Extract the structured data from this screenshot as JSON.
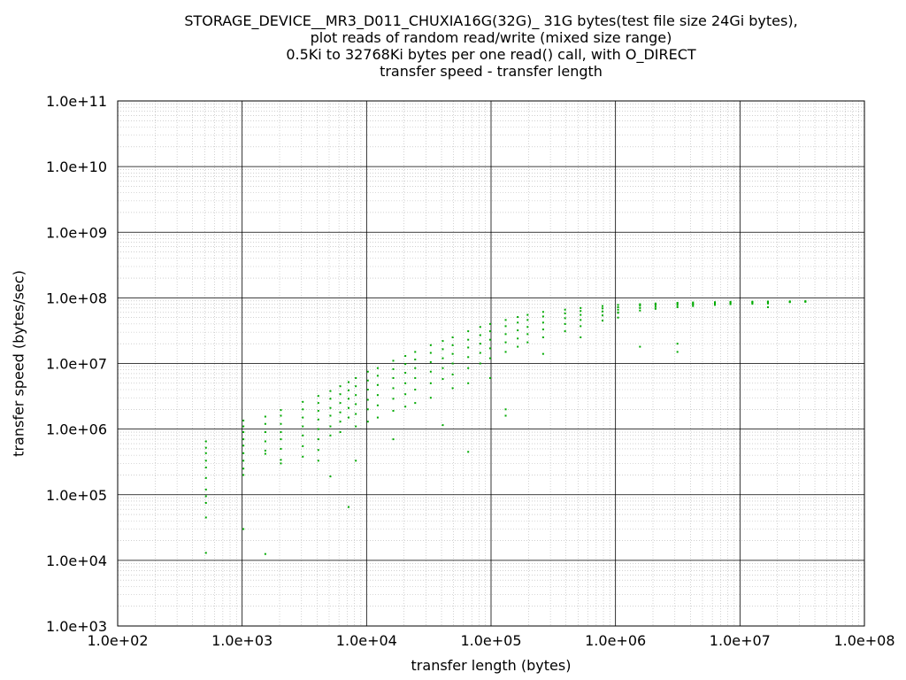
{
  "chart_data": {
    "type": "scatter",
    "title_lines": [
      "STORAGE_DEVICE__MR3_D011_CHUXIA16G(32G)_ 31G bytes(test file size 24Gi bytes),",
      "plot reads of random read/write (mixed size range)",
      "0.5Ki to 32768Ki bytes per one read() call, with O_DIRECT",
      "transfer speed - transfer length"
    ],
    "xlabel": "transfer length (bytes)",
    "ylabel": "transfer speed (bytes/sec)",
    "xscale": "log",
    "yscale": "log",
    "xlim": [
      100,
      100000000
    ],
    "ylim": [
      1000,
      100000000000
    ],
    "xticks": [
      "1.0e+02",
      "1.0e+03",
      "1.0e+04",
      "1.0e+05",
      "1.0e+06",
      "1.0e+07",
      "1.0e+08"
    ],
    "yticks": [
      "1.0e+03",
      "1.0e+04",
      "1.0e+05",
      "1.0e+06",
      "1.0e+07",
      "1.0e+08",
      "1.0e+09",
      "1.0e+10",
      "1.0e+11"
    ],
    "grid": true,
    "marker_color": "#00aa00",
    "series": [
      {
        "points": [
          [
            512,
            650000
          ],
          [
            512,
            520000
          ],
          [
            512,
            430000
          ],
          [
            512,
            330000
          ],
          [
            512,
            260000
          ],
          [
            512,
            180000
          ],
          [
            512,
            120000
          ],
          [
            512,
            95000
          ],
          [
            512,
            75000
          ],
          [
            512,
            45000
          ],
          [
            512,
            13000
          ],
          [
            1024,
            1350000
          ],
          [
            1024,
            1100000
          ],
          [
            1024,
            900000
          ],
          [
            1024,
            700000
          ],
          [
            1024,
            560000
          ],
          [
            1024,
            430000
          ],
          [
            1024,
            330000
          ],
          [
            1024,
            250000
          ],
          [
            1024,
            200000
          ],
          [
            1024,
            30000
          ],
          [
            1536,
            1550000
          ],
          [
            1536,
            1200000
          ],
          [
            1536,
            900000
          ],
          [
            1536,
            650000
          ],
          [
            1536,
            470000
          ],
          [
            1536,
            420000
          ],
          [
            1536,
            12500
          ],
          [
            2048,
            1950000
          ],
          [
            2048,
            1600000
          ],
          [
            2048,
            1200000
          ],
          [
            2048,
            900000
          ],
          [
            2048,
            700000
          ],
          [
            2048,
            500000
          ],
          [
            2048,
            340000
          ],
          [
            2048,
            300000
          ],
          [
            3072,
            2600000
          ],
          [
            3072,
            2000000
          ],
          [
            3072,
            1500000
          ],
          [
            3072,
            1100000
          ],
          [
            3072,
            800000
          ],
          [
            3072,
            550000
          ],
          [
            3072,
            380000
          ],
          [
            4096,
            3200000
          ],
          [
            4096,
            2500000
          ],
          [
            4096,
            1900000
          ],
          [
            4096,
            1400000
          ],
          [
            4096,
            1000000
          ],
          [
            4096,
            700000
          ],
          [
            4096,
            480000
          ],
          [
            4096,
            330000
          ],
          [
            5120,
            3800000
          ],
          [
            5120,
            2900000
          ],
          [
            5120,
            2100000
          ],
          [
            5120,
            1600000
          ],
          [
            5120,
            1100000
          ],
          [
            5120,
            800000
          ],
          [
            5120,
            190000
          ],
          [
            6144,
            4500000
          ],
          [
            6144,
            3400000
          ],
          [
            6144,
            2500000
          ],
          [
            6144,
            1800000
          ],
          [
            6144,
            1300000
          ],
          [
            6144,
            900000
          ],
          [
            7168,
            5200000
          ],
          [
            7168,
            3900000
          ],
          [
            7168,
            2900000
          ],
          [
            7168,
            2100000
          ],
          [
            7168,
            1500000
          ],
          [
            7168,
            65000
          ],
          [
            8192,
            6000000
          ],
          [
            8192,
            4500000
          ],
          [
            8192,
            3300000
          ],
          [
            8192,
            2400000
          ],
          [
            8192,
            1700000
          ],
          [
            8192,
            1100000
          ],
          [
            8192,
            330000
          ],
          [
            10240,
            7500000
          ],
          [
            10240,
            5500000
          ],
          [
            10240,
            4000000
          ],
          [
            10240,
            2800000
          ],
          [
            10240,
            2000000
          ],
          [
            10240,
            1300000
          ],
          [
            12288,
            8500000
          ],
          [
            12288,
            6500000
          ],
          [
            12288,
            4700000
          ],
          [
            12288,
            3300000
          ],
          [
            12288,
            2300000
          ],
          [
            12288,
            1500000
          ],
          [
            16384,
            11000000
          ],
          [
            16384,
            8200000
          ],
          [
            16384,
            6000000
          ],
          [
            16384,
            4200000
          ],
          [
            16384,
            2900000
          ],
          [
            16384,
            1900000
          ],
          [
            16384,
            700000
          ],
          [
            20480,
            13000000
          ],
          [
            20480,
            9800000
          ],
          [
            20480,
            7200000
          ],
          [
            20480,
            5000000
          ],
          [
            20480,
            3400000
          ],
          [
            20480,
            2200000
          ],
          [
            24576,
            15000000
          ],
          [
            24576,
            11500000
          ],
          [
            24576,
            8500000
          ],
          [
            24576,
            6000000
          ],
          [
            24576,
            4000000
          ],
          [
            24576,
            2500000
          ],
          [
            32768,
            19000000
          ],
          [
            32768,
            14500000
          ],
          [
            32768,
            10500000
          ],
          [
            32768,
            7500000
          ],
          [
            32768,
            5000000
          ],
          [
            32768,
            3000000
          ],
          [
            40960,
            22000000
          ],
          [
            40960,
            16500000
          ],
          [
            40960,
            12000000
          ],
          [
            40960,
            8500000
          ],
          [
            40960,
            5800000
          ],
          [
            40960,
            1150000
          ],
          [
            49152,
            25000000
          ],
          [
            49152,
            19000000
          ],
          [
            49152,
            14000000
          ],
          [
            49152,
            10000000
          ],
          [
            49152,
            6800000
          ],
          [
            49152,
            4200000
          ],
          [
            65536,
            31000000
          ],
          [
            65536,
            23000000
          ],
          [
            65536,
            17500000
          ],
          [
            65536,
            12500000
          ],
          [
            65536,
            8500000
          ],
          [
            65536,
            5000000
          ],
          [
            65536,
            450000
          ],
          [
            81920,
            36000000
          ],
          [
            81920,
            27000000
          ],
          [
            81920,
            20000000
          ],
          [
            81920,
            14500000
          ],
          [
            81920,
            10000000
          ],
          [
            98304,
            40000000
          ],
          [
            98304,
            31000000
          ],
          [
            98304,
            23000000
          ],
          [
            98304,
            17000000
          ],
          [
            98304,
            12000000
          ],
          [
            98304,
            6000000
          ],
          [
            131072,
            46000000
          ],
          [
            131072,
            37000000
          ],
          [
            131072,
            28000000
          ],
          [
            131072,
            21000000
          ],
          [
            131072,
            15000000
          ],
          [
            131072,
            2000000
          ],
          [
            131072,
            1600000
          ],
          [
            163840,
            51000000
          ],
          [
            163840,
            42000000
          ],
          [
            163840,
            32000000
          ],
          [
            163840,
            24000000
          ],
          [
            163840,
            18000000
          ],
          [
            196608,
            55000000
          ],
          [
            196608,
            46000000
          ],
          [
            196608,
            36000000
          ],
          [
            196608,
            28000000
          ],
          [
            196608,
            21000000
          ],
          [
            262144,
            61000000
          ],
          [
            262144,
            52000000
          ],
          [
            262144,
            42000000
          ],
          [
            262144,
            33000000
          ],
          [
            262144,
            25000000
          ],
          [
            262144,
            14000000
          ],
          [
            393216,
            66000000
          ],
          [
            393216,
            58000000
          ],
          [
            393216,
            49000000
          ],
          [
            393216,
            40000000
          ],
          [
            393216,
            31000000
          ],
          [
            524288,
            70000000
          ],
          [
            524288,
            63000000
          ],
          [
            524288,
            55000000
          ],
          [
            524288,
            46000000
          ],
          [
            524288,
            37000000
          ],
          [
            524288,
            25000000
          ],
          [
            786432,
            75000000
          ],
          [
            786432,
            69000000
          ],
          [
            786432,
            62000000
          ],
          [
            786432,
            54000000
          ],
          [
            786432,
            45000000
          ],
          [
            1048576,
            78000000
          ],
          [
            1048576,
            72000000
          ],
          [
            1048576,
            66000000
          ],
          [
            1048576,
            59000000
          ],
          [
            1048576,
            50000000
          ],
          [
            1048576,
            60000000
          ],
          [
            1572864,
            80000000
          ],
          [
            1572864,
            76000000
          ],
          [
            1572864,
            70000000
          ],
          [
            1572864,
            64000000
          ],
          [
            1572864,
            18000000
          ],
          [
            2097152,
            82000000
          ],
          [
            2097152,
            78000000
          ],
          [
            2097152,
            73000000
          ],
          [
            2097152,
            68000000
          ],
          [
            3145728,
            84000000
          ],
          [
            3145728,
            81000000
          ],
          [
            3145728,
            77000000
          ],
          [
            3145728,
            72000000
          ],
          [
            3145728,
            15000000
          ],
          [
            3145728,
            20000000
          ],
          [
            4194304,
            85000000
          ],
          [
            4194304,
            82000000
          ],
          [
            4194304,
            79000000
          ],
          [
            4194304,
            75000000
          ],
          [
            6291456,
            86000000
          ],
          [
            6291456,
            84000000
          ],
          [
            6291456,
            81000000
          ],
          [
            6291456,
            78000000
          ],
          [
            8388608,
            87000000
          ],
          [
            8388608,
            85000000
          ],
          [
            8388608,
            83000000
          ],
          [
            8388608,
            80000000
          ],
          [
            12582912,
            87500000
          ],
          [
            12582912,
            86000000
          ],
          [
            12582912,
            84000000
          ],
          [
            12582912,
            81000000
          ],
          [
            16777216,
            88000000
          ],
          [
            16777216,
            86500000
          ],
          [
            16777216,
            85000000
          ],
          [
            16777216,
            82000000
          ],
          [
            16777216,
            72000000
          ],
          [
            25165824,
            88500000
          ],
          [
            25165824,
            87000000
          ],
          [
            25165824,
            86000000
          ],
          [
            33554432,
            89000000
          ],
          [
            33554432,
            88000000
          ],
          [
            33554432,
            87000000
          ]
        ]
      }
    ]
  }
}
